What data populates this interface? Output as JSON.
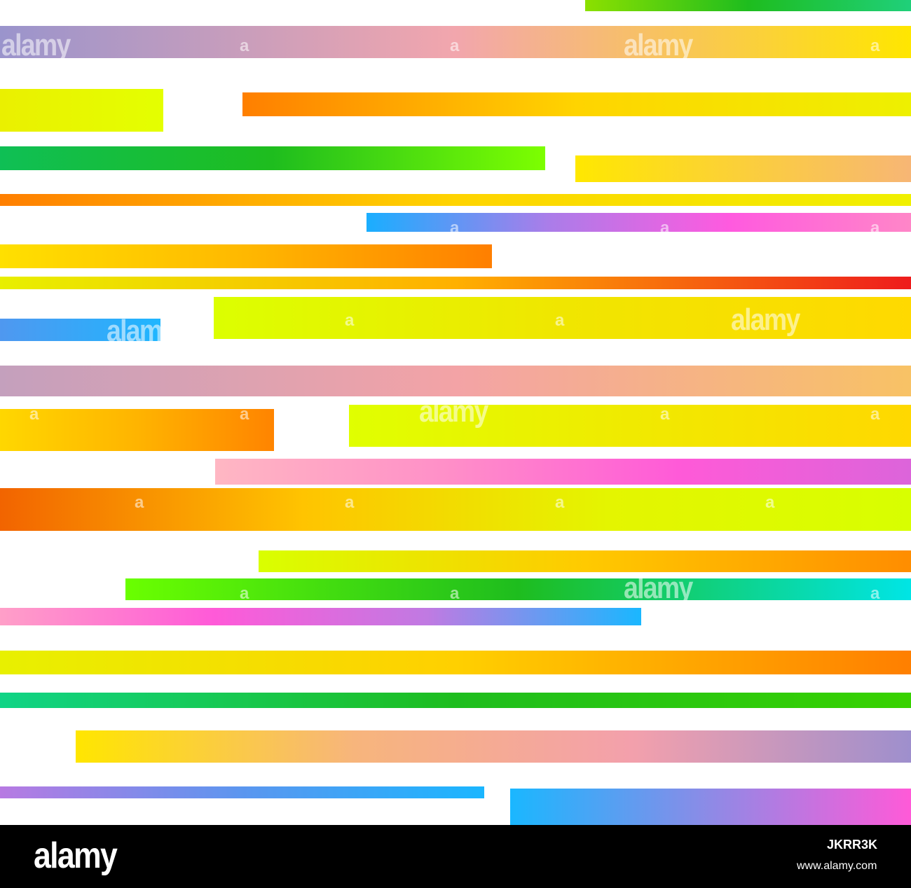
{
  "art": {
    "stripes": [
      {
        "colors": [
          "#8ce000",
          "#1ebd1e",
          "#1fd07a"
        ]
      },
      {
        "colors": [
          "#9a94cc",
          "#f2a6ad",
          "#ffe600"
        ]
      },
      {
        "colors": [
          "#eaf000",
          "#e4ff00"
        ]
      },
      {
        "colors": [
          "#ff7f00",
          "#ffd400",
          "#eef000"
        ]
      },
      {
        "colors": [
          "#0fbf55",
          "#1ebd1e",
          "#7dff00"
        ]
      },
      {
        "colors": [
          "#ffe800",
          "#f7b675"
        ]
      },
      {
        "colors": [
          "#ff7f00",
          "#ffd400",
          "#f0f000"
        ]
      },
      {
        "colors": [
          "#1aaeff",
          "#aa7de9",
          "#ff5adf",
          "#ff86c8"
        ]
      },
      {
        "colors": [
          "#ffe000",
          "#ffb800",
          "#ff7f00"
        ]
      },
      {
        "colors": [
          "#e8ef00",
          "#ffb000",
          "#ee1c1c"
        ]
      },
      {
        "colors": [
          "#4f98f0",
          "#1fb6ff"
        ]
      },
      {
        "colors": [
          "#dcff00",
          "#f0e600",
          "#ffd900"
        ]
      },
      {
        "colors": [
          "#c4a0bd",
          "#f3a3a6",
          "#f8c265"
        ]
      },
      {
        "colors": [
          "#ffd700",
          "#ffb400",
          "#ff8400"
        ]
      },
      {
        "colors": [
          "#e0ff00",
          "#f0ea00",
          "#ffd800"
        ]
      },
      {
        "colors": [
          "#ffb7c3",
          "#ff8fc8",
          "#ff5ad8",
          "#dc64da"
        ]
      },
      {
        "colors": [
          "#f26400",
          "#ffc400",
          "#e4f500",
          "#d8ff00"
        ]
      },
      {
        "colors": [
          "#d9ff00",
          "#ffca00",
          "#ff8d00"
        ]
      },
      {
        "colors": [
          "#6aff00",
          "#1ebd1e",
          "#00e5e5"
        ]
      },
      {
        "colors": [
          "#ff9fc8",
          "#ff5ad8",
          "#c07ae2",
          "#1ab7ff"
        ]
      },
      {
        "colors": [
          "#e8f000",
          "#ffd000",
          "#ff7f00"
        ]
      },
      {
        "colors": [
          "#10d486",
          "#1ebd1e",
          "#38d200"
        ]
      },
      {
        "colors": [
          "#ffe600",
          "#f7b57c",
          "#f3a0ac",
          "#9e8fcd"
        ]
      },
      {
        "colors": [
          "#b77ae2",
          "#5b96ef",
          "#1ab6ff"
        ]
      },
      {
        "colors": [
          "#1ab7ff",
          "#8e8ae6",
          "#ff5ad8"
        ]
      }
    ],
    "watermark_word": "alamy",
    "watermark_glyph": "a"
  },
  "footer": {
    "brand": "alamy",
    "image_id": "JKRR3K",
    "site": "www.alamy.com"
  }
}
